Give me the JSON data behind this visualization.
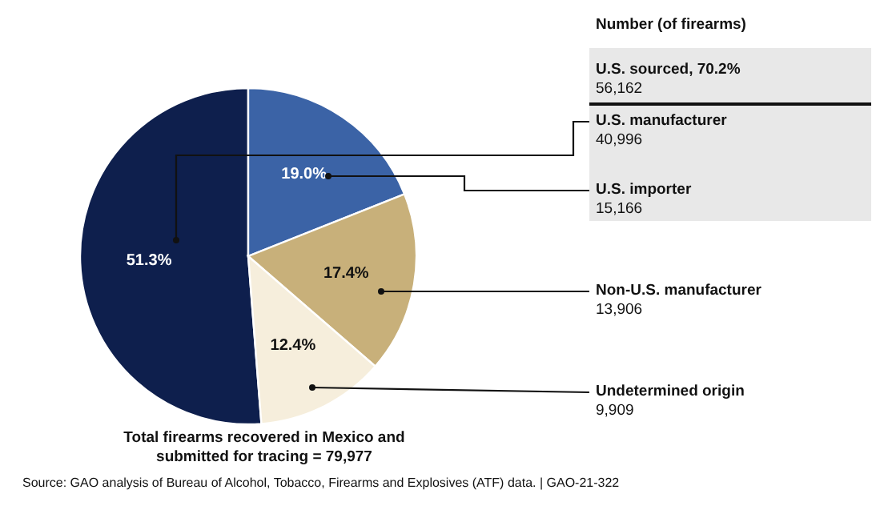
{
  "chart_data": {
    "type": "pie",
    "legend_title": "Number (of firearms)",
    "categories": [
      "U.S. manufacturer",
      "U.S. importer",
      "Non-U.S. manufacturer",
      "Undetermined origin"
    ],
    "values": [
      51.3,
      19.0,
      17.4,
      12.4
    ],
    "value_labels": [
      "51.3%",
      "19.0%",
      "17.4%",
      "12.4%"
    ],
    "colors": [
      "#0e1f4d",
      "#3b63a6",
      "#c8b07a",
      "#f6eedc"
    ],
    "annotations": [
      "U.S. sourced, 70.2%",
      "56,162",
      "40,996",
      "15,166",
      "13,906",
      "9,909",
      "Total firearms recovered in Mexico and submitted for tracing = 79,977",
      "Source: GAO analysis of Bureau of Alcohol, Tobacco, Firearms and Explosives (ATF) data.  |  GAO-21-322"
    ]
  }
}
